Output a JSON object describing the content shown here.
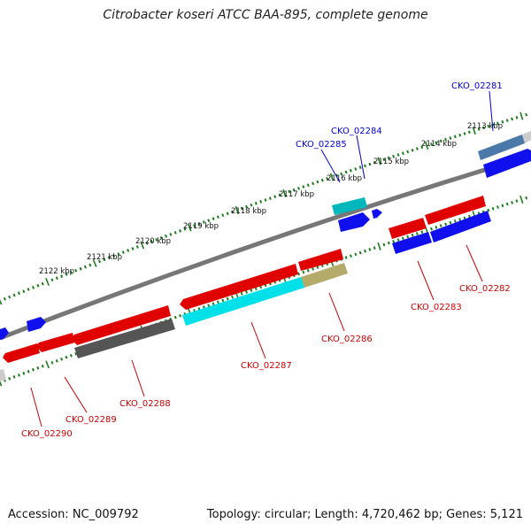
{
  "title": "Citrobacter koseri ATCC BAA-895, complete genome",
  "footer": {
    "accession": "Accession: NC_009792",
    "summary": "Topology: circular; Length: 4,720,462 bp; Genes: 5,121"
  },
  "colors": {
    "forward_label": "#0000cc",
    "reverse_label": "#cc0000",
    "backbone": "#777777",
    "tick": "#1e7d1e",
    "red": "#e00000",
    "blue": "#1010ee",
    "cyan": "#00e0e8",
    "teal": "#00b8bc",
    "gray": "#555555",
    "olive": "#b4aa6a",
    "steel": "#4a78a8",
    "light": "#cccccc"
  },
  "kbp_labels": [
    "2113 kbp",
    "2114 kbp",
    "2115 kbp",
    "2116 kbp",
    "2117 kbp",
    "2118 kbp",
    "2119 kbp",
    "2120 kbp",
    "2121 kbp",
    "2122 kbp"
  ],
  "genes": [
    {
      "id": "CKO_02281",
      "strand": "forward"
    },
    {
      "id": "CKO_02284",
      "strand": "forward"
    },
    {
      "id": "CKO_02285",
      "strand": "forward"
    },
    {
      "id": "CKO_02282",
      "strand": "reverse"
    },
    {
      "id": "CKO_02283",
      "strand": "reverse"
    },
    {
      "id": "CKO_02286",
      "strand": "reverse"
    },
    {
      "id": "CKO_02287",
      "strand": "reverse"
    },
    {
      "id": "CKO_02288",
      "strand": "reverse"
    },
    {
      "id": "CKO_02289",
      "strand": "reverse"
    },
    {
      "id": "CKO_02290",
      "strand": "reverse"
    }
  ]
}
